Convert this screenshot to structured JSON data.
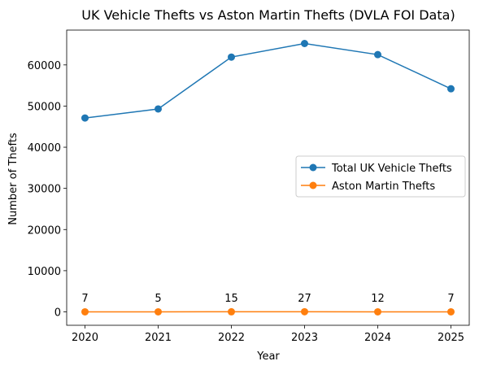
{
  "chart_data": {
    "type": "line",
    "title": "UK Vehicle Thefts vs Aston Martin Thefts (DVLA FOI Data)",
    "xlabel": "Year",
    "ylabel": "Number of Thefts",
    "x": [
      2020,
      2021,
      2022,
      2023,
      2024,
      2025
    ],
    "xlim": [
      2019.75,
      2025.25
    ],
    "ylim": [
      -3260,
      68460
    ],
    "yticks": [
      0,
      10000,
      20000,
      30000,
      40000,
      50000,
      60000
    ],
    "grid": false,
    "legend_position": "center-right",
    "series": [
      {
        "name": "Total UK Vehicle Thefts",
        "color": "#1f77b4",
        "marker": "circle",
        "values": [
          47100,
          49300,
          61900,
          65200,
          62500,
          54200
        ]
      },
      {
        "name": "Aston Martin Thefts",
        "color": "#ff7f0e",
        "marker": "circle",
        "values": [
          7,
          5,
          15,
          27,
          12,
          7
        ],
        "data_labels": [
          "7",
          "5",
          "15",
          "27",
          "12",
          "7"
        ]
      }
    ]
  }
}
